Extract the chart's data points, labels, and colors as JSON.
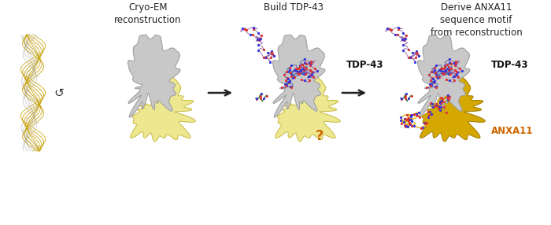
{
  "background_color": "#ffffff",
  "panel_labels": [
    "Cryo-EM\nreconstruction",
    "Build TDP-43",
    "Derive ANXA11\nsequence motif\nfrom reconstruction"
  ],
  "label_fontsize": 8.5,
  "tdp43_label": "TDP-43",
  "anxa11_label": "ANXA11",
  "question_mark": "?",
  "arrow_color": "#222222",
  "gray_color": "#c8c8c8",
  "gray_edge": "#999999",
  "yellow_color": "#ede890",
  "yellow_edge": "#c8b840",
  "orange_gold_color": "#d4a800",
  "orange_gold_edge": "#a07800",
  "orange_color": "#cc6600",
  "filament_gold": "#c8a000",
  "filament_silver": "#b0b0b0",
  "filament_dark": "#886600",
  "rotate_symbol": "↺",
  "tdp43_color": "#111111",
  "anxa11_color": "#cc6600",
  "backbone_purple": "#9060a0",
  "backbone_blue": "#4060b0",
  "backbone_green": "#207020",
  "atom_red": "#dd3333",
  "atom_blue": "#3333dd",
  "atom_dark": "#333333"
}
